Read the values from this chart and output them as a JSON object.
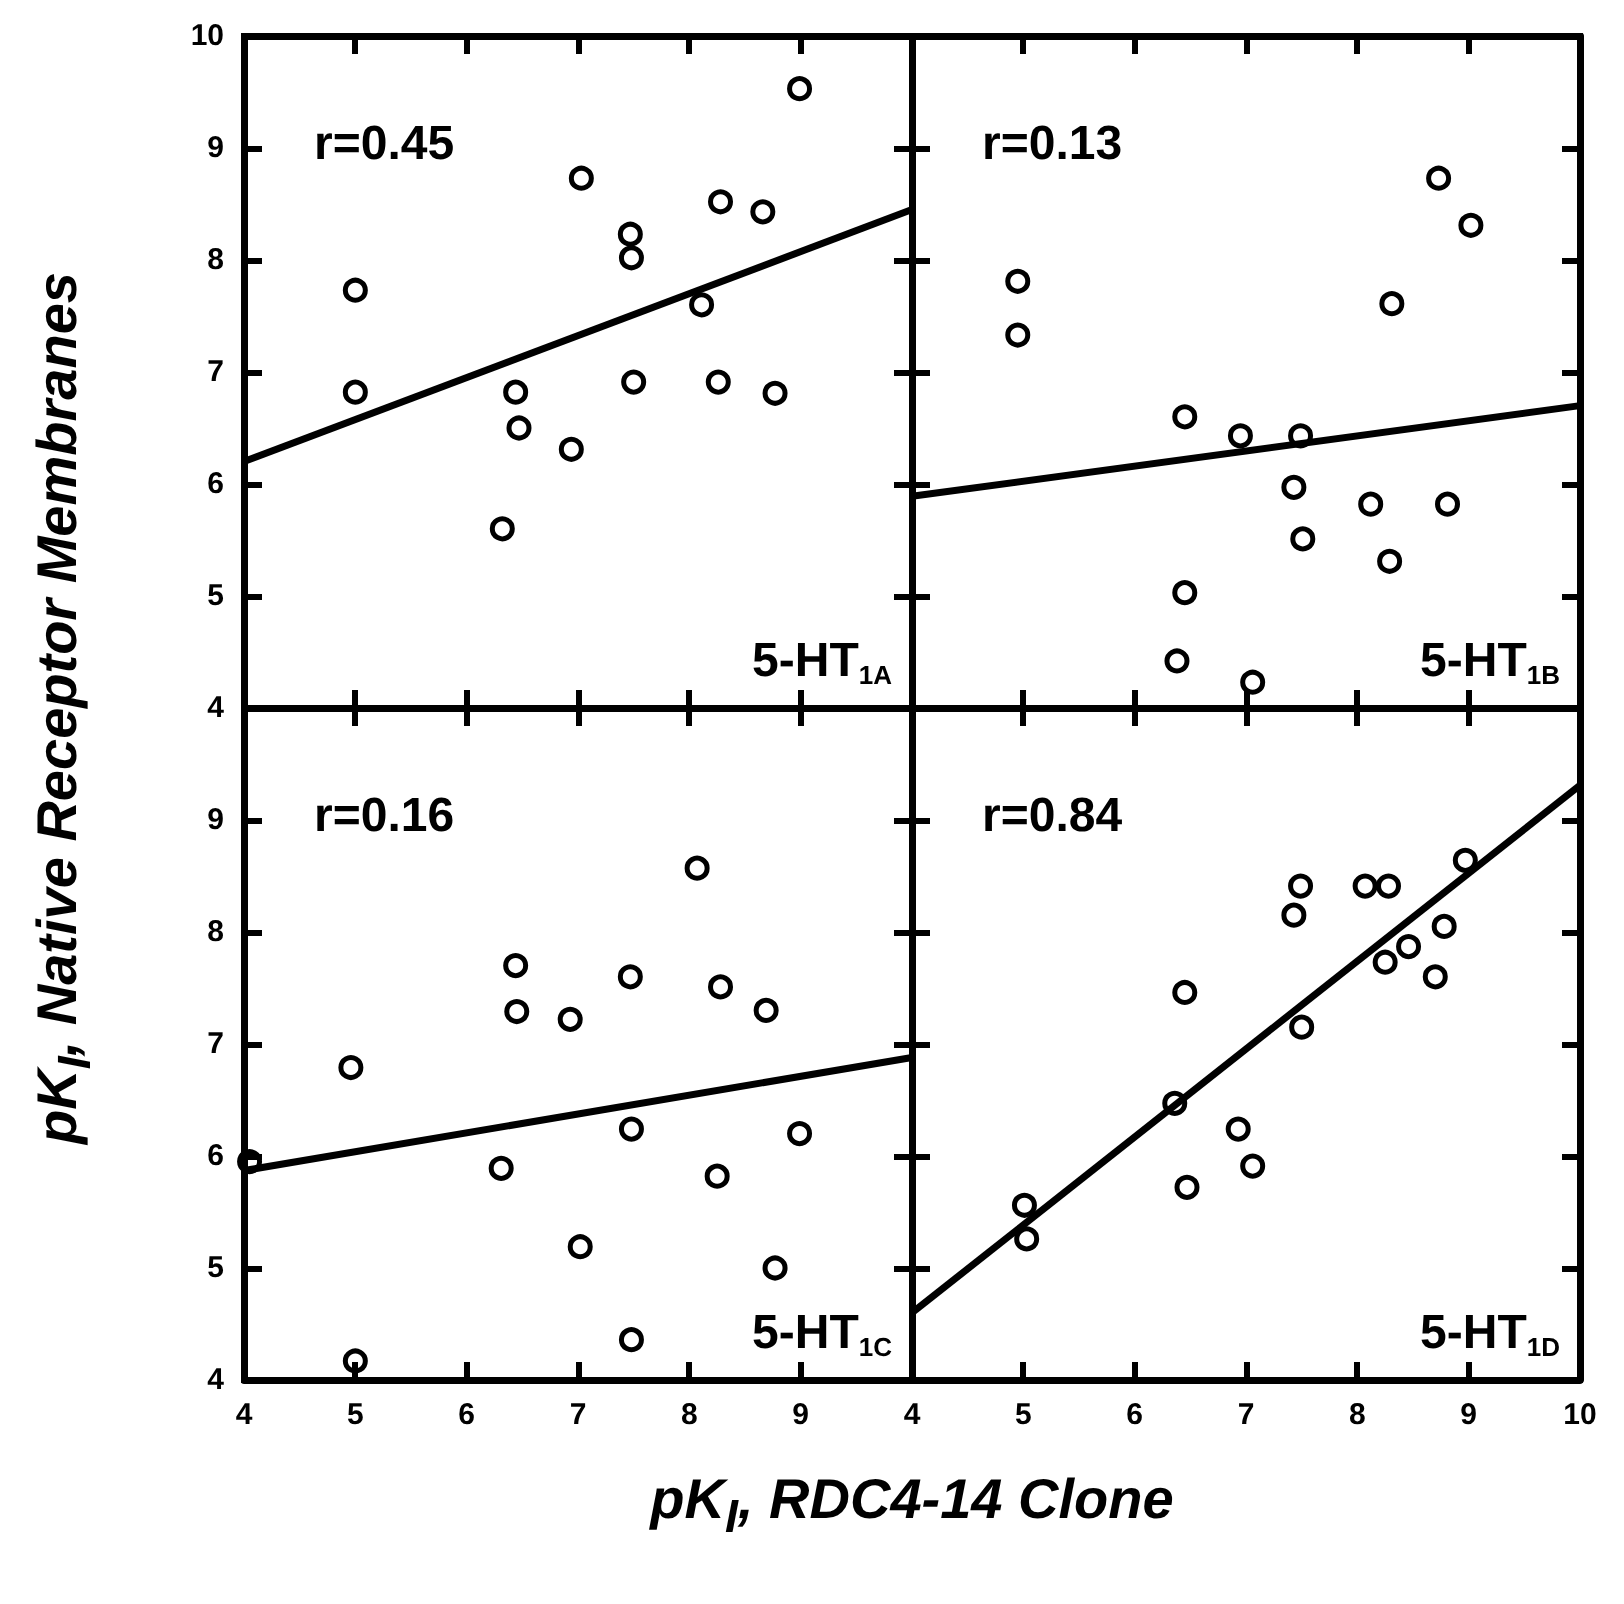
{
  "chart_data": [
    {
      "type": "scatter",
      "ylabel": "pK$_{I}$, Native Receptor Membranes",
      "annotations": [
        "r=0.45",
        "5-HT$_{1A}$"
      ],
      "xlim": [
        4,
        10
      ],
      "ylim": [
        4,
        10
      ],
      "xticks": [
        4,
        5,
        6,
        7,
        8,
        9,
        10
      ],
      "yticks": [
        4,
        5,
        6,
        7,
        8,
        9,
        10
      ],
      "tick_labels": "y",
      "series": [
        {
          "type": "scatter",
          "marker": "circle",
          "color": "#000000",
          "x": [
            5.0,
            5.0,
            6.44,
            6.47,
            6.32,
            6.94,
            7.03,
            7.47,
            7.48,
            7.5,
            8.11,
            8.28,
            8.26,
            8.66,
            8.77,
            8.99
          ],
          "values": [
            7.73,
            6.82,
            6.82,
            6.5,
            5.6,
            6.31,
            8.73,
            8.23,
            8.02,
            6.91,
            7.6,
            8.52,
            6.91,
            8.43,
            6.81,
            9.53
          ]
        },
        {
          "type": "line",
          "color": "#000000",
          "x": [
            4,
            10
          ],
          "values": [
            6.2,
            8.45
          ]
        }
      ]
    },
    {
      "type": "scatter",
      "annotations": [
        "r=0.13",
        "5-HT$_{1B}$"
      ],
      "xlim": [
        4,
        10
      ],
      "ylim": [
        4,
        10
      ],
      "xticks": [
        4,
        5,
        6,
        7,
        8,
        9,
        10
      ],
      "yticks": [
        4,
        5,
        6,
        7,
        8,
        9,
        10
      ],
      "tick_labels": false,
      "series": [
        {
          "type": "scatter",
          "marker": "circle",
          "color": "#000000",
          "x": [
            4.95,
            4.95,
            6.45,
            6.45,
            6.38,
            6.95,
            7.06,
            7.49,
            7.43,
            7.51,
            8.12,
            8.29,
            8.31,
            8.73,
            9.02,
            8.81
          ],
          "values": [
            7.81,
            7.33,
            6.6,
            5.03,
            4.42,
            6.43,
            4.23,
            6.43,
            5.97,
            5.51,
            5.82,
            5.31,
            7.61,
            8.73,
            8.31,
            5.82
          ]
        },
        {
          "type": "line",
          "color": "#000000",
          "x": [
            4,
            10
          ],
          "values": [
            5.89,
            6.7
          ]
        }
      ]
    },
    {
      "type": "scatter",
      "xlabel": "pK$_{I}$, RDC4-14 Clone",
      "annotations": [
        "r=0.16",
        "5-HT$_{1C}$"
      ],
      "xlim": [
        4,
        10
      ],
      "ylim": [
        4,
        10
      ],
      "xticks": [
        4,
        5,
        6,
        7,
        8,
        9,
        {
          "value": 10,
          "label": null
        }
      ],
      "yticks": [
        4,
        5,
        6,
        7,
        8,
        9,
        {
          "value": 10,
          "label": null
        }
      ],
      "series": [
        {
          "type": "scatter",
          "marker": "circle",
          "color": "#000000",
          "x": [
            4.05,
            4.96,
            5.0,
            6.31,
            6.44,
            6.45,
            6.93,
            7.02,
            7.47,
            7.48,
            7.48,
            8.07,
            8.28,
            8.25,
            8.69,
            8.77,
            8.99
          ],
          "values": [
            5.95,
            6.79,
            4.17,
            5.89,
            7.7,
            7.29,
            7.22,
            5.19,
            7.6,
            6.24,
            4.36,
            8.57,
            7.51,
            5.82,
            7.3,
            5.0,
            6.2
          ]
        },
        {
          "type": "line",
          "color": "#000000",
          "x": [
            4,
            10
          ],
          "values": [
            5.87,
            6.88
          ]
        }
      ]
    },
    {
      "type": "scatter",
      "annotations": [
        "r=0.84",
        "5-HT$_{1D}$"
      ],
      "xlim": [
        4,
        10
      ],
      "ylim": [
        4,
        10
      ],
      "xticks": [
        4,
        5,
        6,
        7,
        8,
        9,
        10
      ],
      "yticks": [
        4,
        5,
        6,
        7,
        8,
        9,
        10
      ],
      "tick_labels": "x",
      "series": [
        {
          "type": "scatter",
          "marker": "circle",
          "color": "#000000",
          "x": [
            5.01,
            5.03,
            6.36,
            6.45,
            6.47,
            6.93,
            7.06,
            7.43,
            7.49,
            7.5,
            8.07,
            8.28,
            8.25,
            8.46,
            8.7,
            8.78,
            8.97
          ],
          "values": [
            5.56,
            5.26,
            6.47,
            7.46,
            5.72,
            6.24,
            5.91,
            8.15,
            8.41,
            7.15,
            8.41,
            8.41,
            7.73,
            7.87,
            7.6,
            8.05,
            8.64
          ]
        },
        {
          "type": "line",
          "color": "#000000",
          "x": [
            4,
            10
          ],
          "values": [
            4.6,
            9.31
          ]
        }
      ]
    }
  ]
}
